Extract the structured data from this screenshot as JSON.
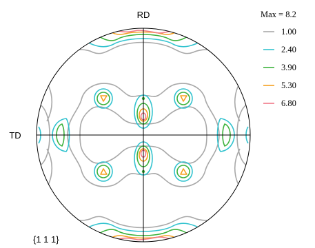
{
  "labels": {
    "top": "RD",
    "left": "TD",
    "plane": "{1 1 1}"
  },
  "legend": {
    "max_label": "Max = 8.2",
    "levels": [
      {
        "value": "1.00",
        "color": "#a8a8a8"
      },
      {
        "value": "2.40",
        "color": "#33c3cf"
      },
      {
        "value": "3.90",
        "color": "#3cb23c"
      },
      {
        "value": "5.30",
        "color": "#f5a020"
      },
      {
        "value": "6.80",
        "color": "#f07888"
      }
    ]
  },
  "colors": {
    "outline": "#000000",
    "level_1": "#a8a8a8",
    "level_2": "#33c3cf",
    "level_3": "#3cb23c",
    "level_4": "#f5a020",
    "level_5": "#f07888"
  }
}
